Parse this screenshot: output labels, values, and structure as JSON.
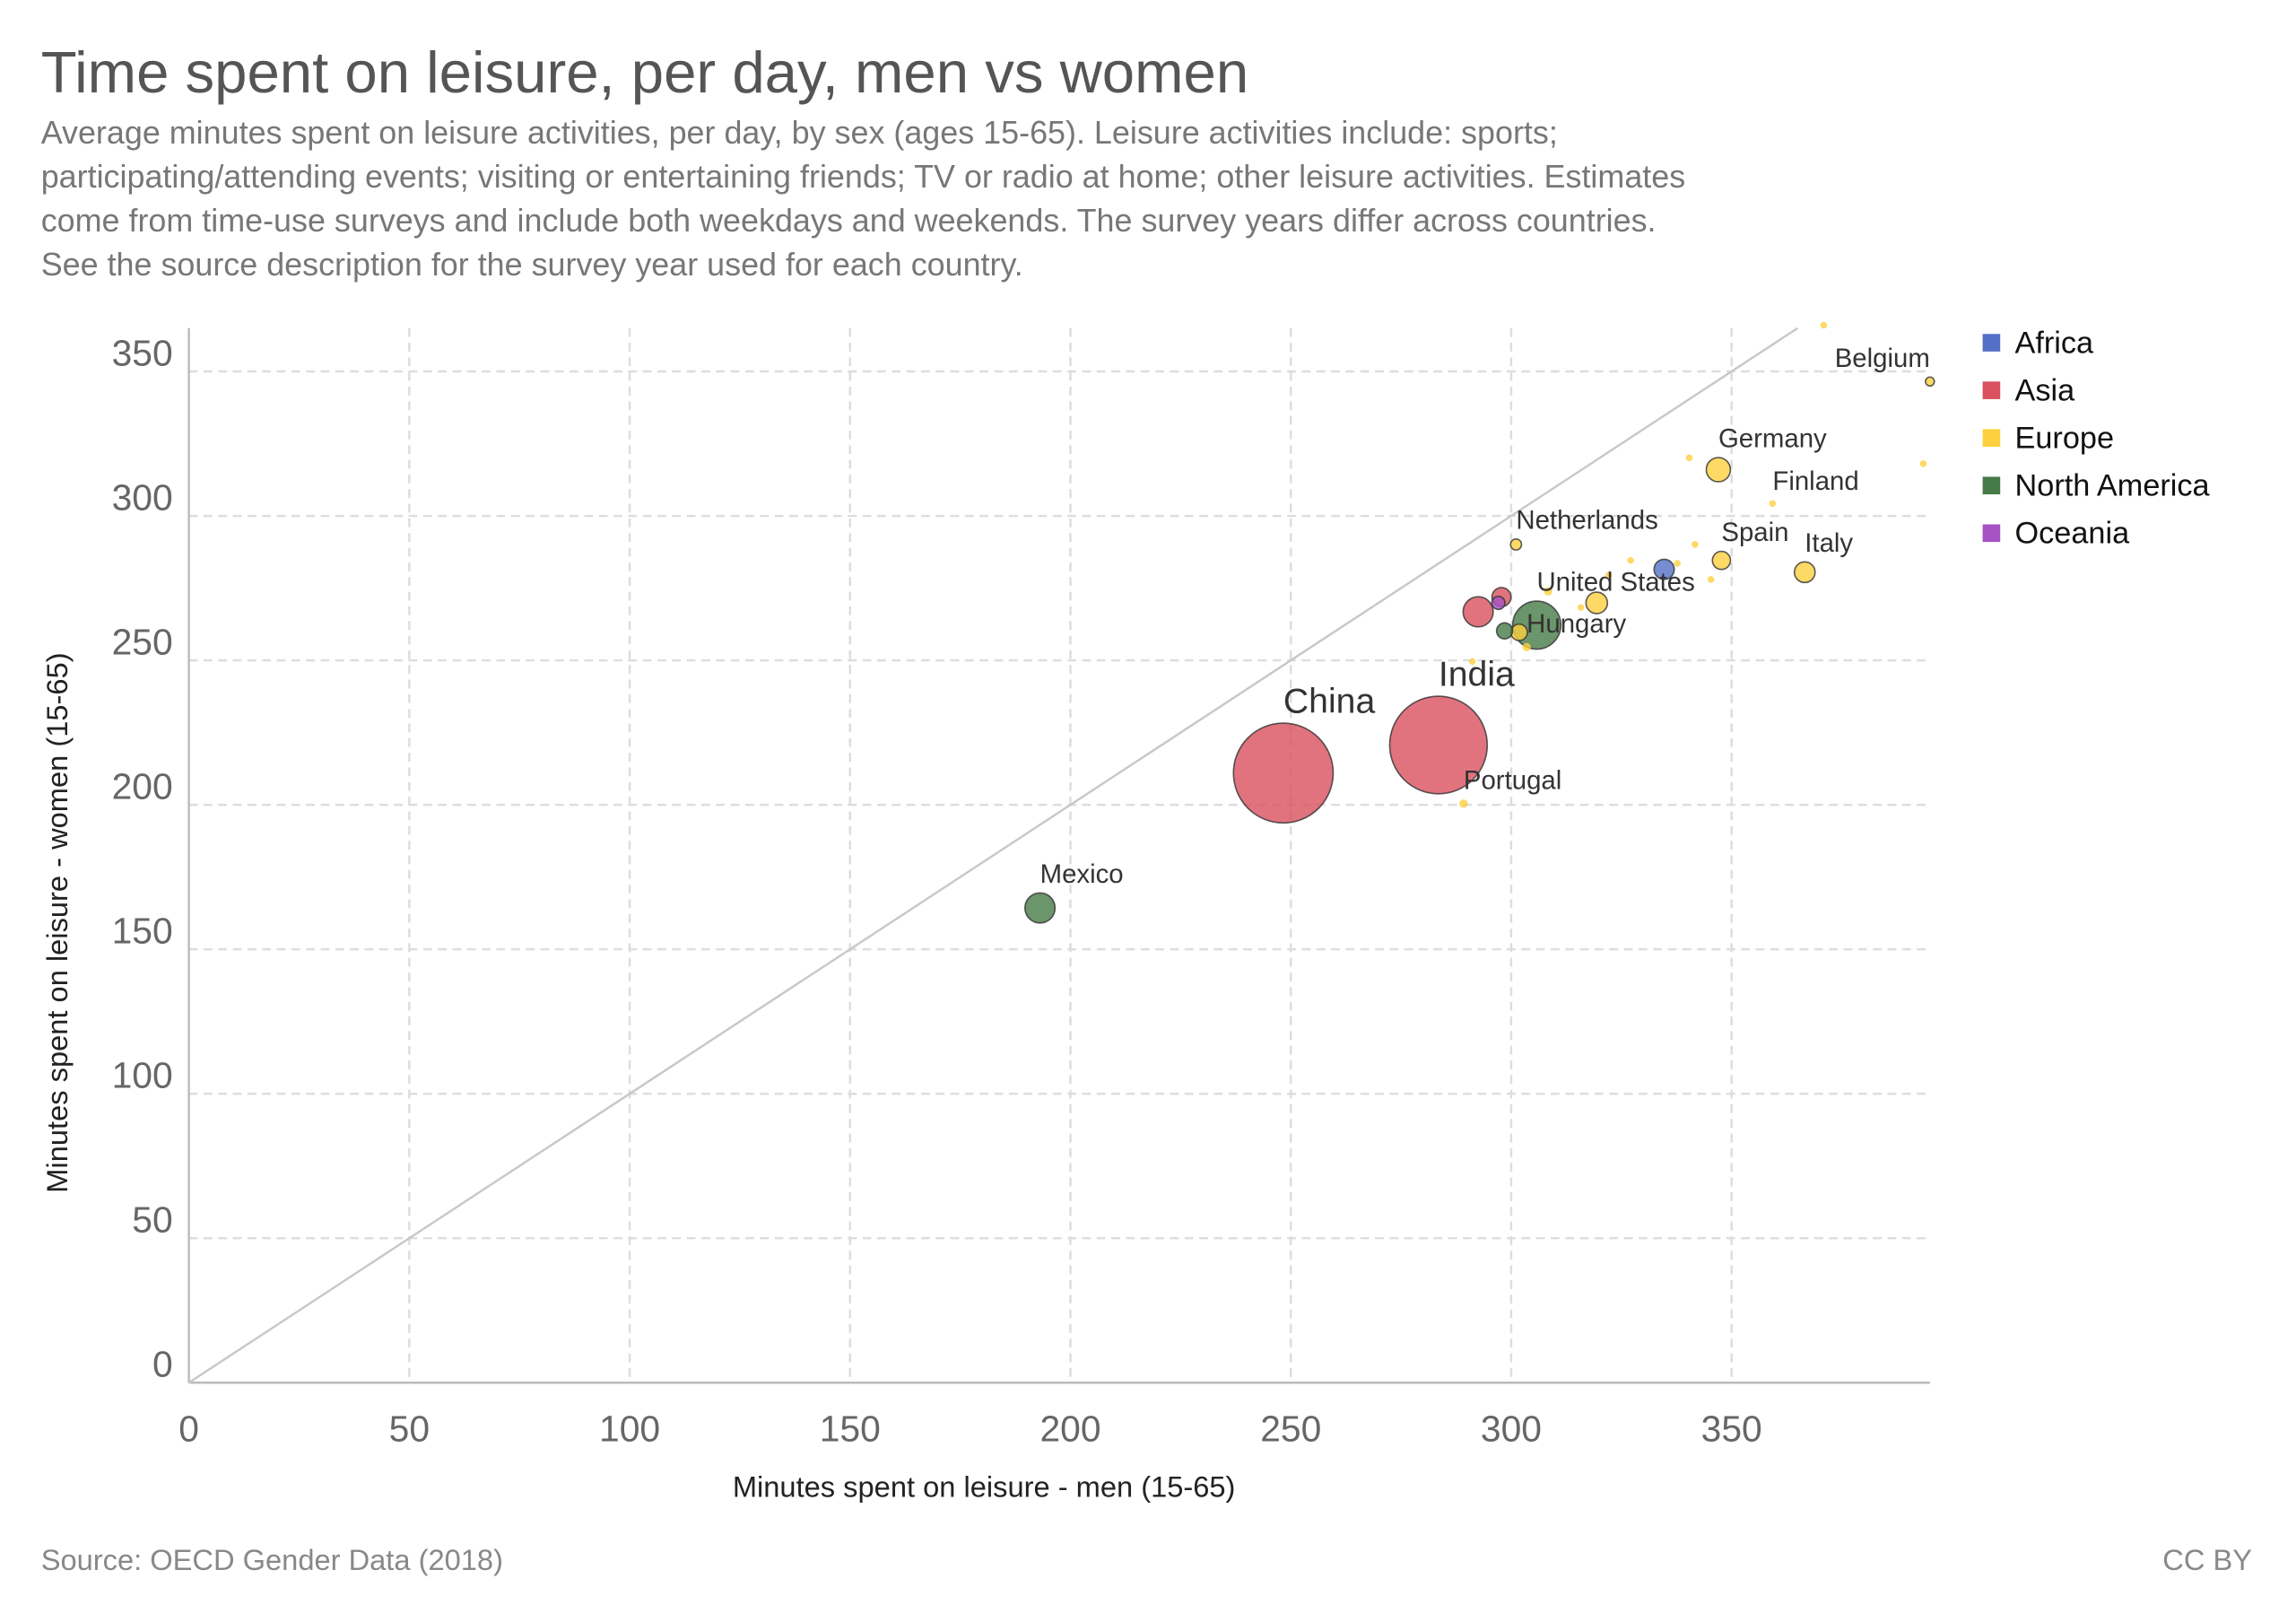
{
  "chart_data": {
    "type": "scatter",
    "title": "Time spent on leisure, per day, men vs women",
    "subtitle": [
      "Average minutes spent on leisure activities, per day, by sex (ages 15-65). Leisure activities include: sports;",
      "participating/attending events; visiting or entertaining friends; TV or radio at home; other leisure activities. Estimates",
      "come from time-use surveys and include both weekdays and weekends. The survey years differ across countries.",
      "See the source description for the survey year used for each country."
    ],
    "x_label": "Minutes spent on leisure - men (15-65)",
    "y_label": "Minutes spent on leisure - women (15-65)",
    "source": "Source: OECD Gender Data (2018)",
    "license": "CC BY",
    "xlim": [
      0,
      395
    ],
    "ylim": [
      0,
      365
    ],
    "xticks": [
      0,
      50,
      100,
      150,
      200,
      250,
      300,
      350
    ],
    "yticks": [
      0,
      50,
      100,
      150,
      200,
      250,
      300,
      350
    ],
    "grid": true,
    "diagonal": true,
    "legend": "top-right",
    "series": [
      {
        "name": "Africa",
        "color": "#5470c6",
        "x": [
          334.7
        ],
        "values": [
          281.5
        ],
        "sizes": [
          57
        ],
        "labels": [
          null
        ]
      },
      {
        "name": "Asia",
        "color": "#d9505f",
        "x": [
          248.3,
          283.5,
          292.5,
          297.8
        ],
        "values": [
          211,
          220.7,
          266.8,
          271.9
        ],
        "sizes": [
          1400,
          1340,
          127,
          51
        ],
        "labels": [
          "China",
          "India",
          null,
          null
        ]
      },
      {
        "name": "Europe",
        "color": "#fcd03e",
        "x": [
          289.2,
          303.5,
          301.1,
          301.8,
          319.4,
          308.4,
          291.2,
          322.1,
          327.1,
          337.7,
          340.4,
          347,
          341.7,
          347.7,
          345.3,
          315.8,
          359.3,
          366.6,
          395,
          393.5,
          370.9
        ],
        "values": [
          200.4,
          254.6,
          290.1,
          259.7,
          269.9,
          273.9,
          249.6,
          279.5,
          284.6,
          283.6,
          320.1,
          316,
          290.1,
          284.6,
          278,
          268.3,
          304.3,
          280.5,
          346.5,
          318.1,
          366
        ],
        "sizes": [
          10,
          10,
          17,
          38,
          65,
          10,
          2,
          5,
          3,
          3,
          5,
          82,
          3,
          46,
          2,
          2,
          5.5,
          60,
          11,
          5,
          3
        ],
        "labels": [
          "Portugal",
          "Hungary",
          "Netherlands",
          null,
          null,
          null,
          null,
          null,
          null,
          null,
          null,
          "Germany",
          null,
          "Spain",
          null,
          null,
          "Finland",
          "Italy",
          "Belgium",
          null,
          null
        ]
      },
      {
        "name": "North America",
        "color": "#467a46",
        "x": [
          193.1,
          305.8,
          298.5
        ],
        "values": [
          164.3,
          262.2,
          260.2
        ],
        "sizes": [
          127,
          325,
          36
        ],
        "labels": [
          "Mexico",
          "United States",
          null
        ]
      },
      {
        "name": "Oceania",
        "color": "#a652c4",
        "x": [
          297.1
        ],
        "values": [
          269.9
        ],
        "sizes": [
          24
        ],
        "labels": [
          null
        ]
      }
    ]
  }
}
